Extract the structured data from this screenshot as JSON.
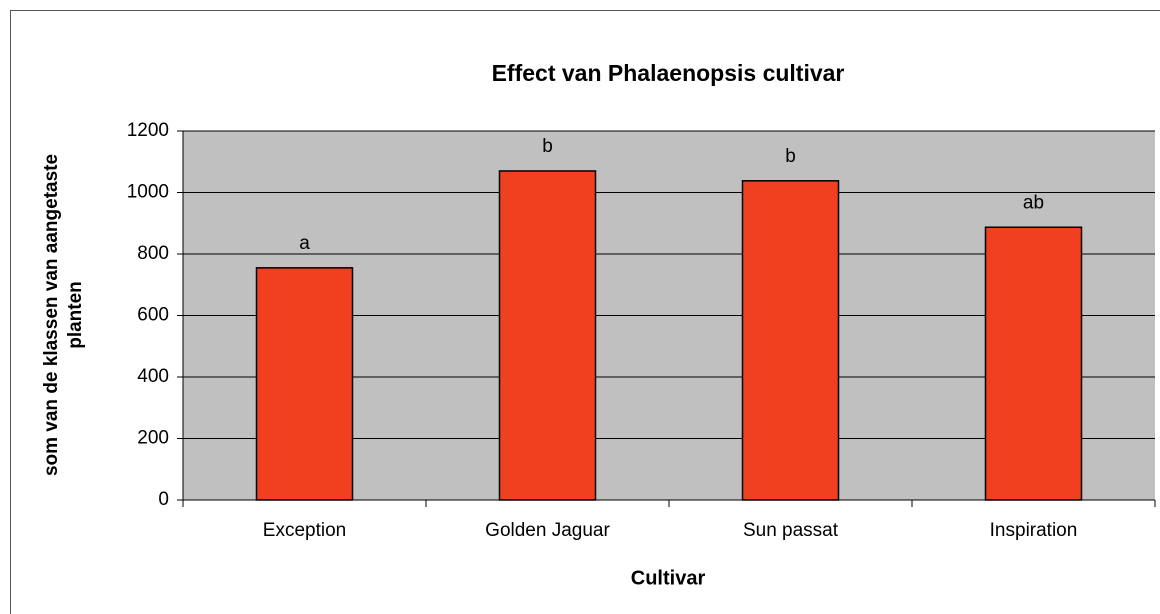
{
  "chart_data": {
    "type": "bar",
    "title": "Effect van Phalaenopsis cultivar",
    "xlabel": "Cultivar",
    "ylabel": [
      "som van de klassen van aangetaste",
      "planten"
    ],
    "categories": [
      "Exception",
      "Golden Jaguar",
      "Sun passat",
      "Inspiration"
    ],
    "values": [
      755,
      1070,
      1038,
      887
    ],
    "annotations": [
      "a",
      "b",
      "b",
      "ab"
    ],
    "color": "#f04020",
    "ylim": [
      0,
      1200
    ],
    "yticks": [
      0,
      200,
      400,
      600,
      800,
      1000,
      1200
    ],
    "grid": true
  }
}
